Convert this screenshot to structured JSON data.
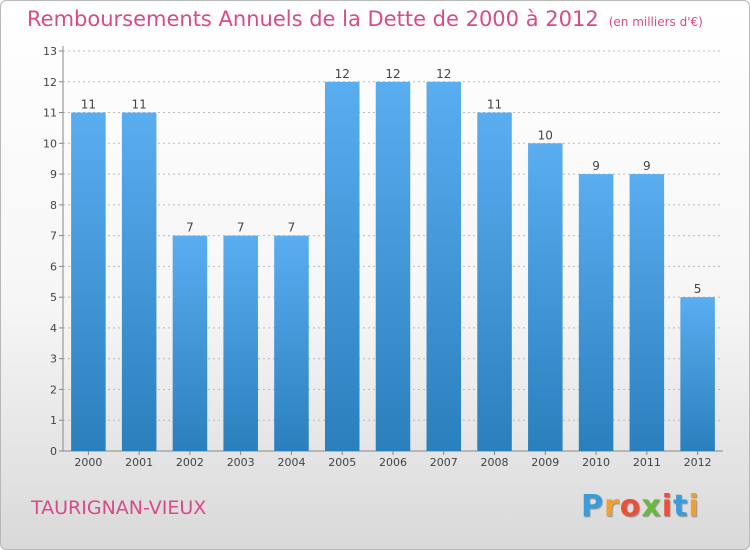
{
  "header": {
    "title": "Remboursements Annuels de la Dette de 2000 à 2012",
    "unit": "(en milliers d'€)"
  },
  "footer": {
    "commune": "TAURIGNAN-VIEUX",
    "logo": {
      "letters": [
        "P",
        "r",
        "o",
        "x",
        "i",
        "t",
        "i"
      ],
      "colors": [
        "#3b9cd9",
        "#f0a030",
        "#e8503a",
        "#6ab840",
        "#e8503a",
        "#3b9cd9",
        "#f0a030"
      ]
    }
  },
  "colors": {
    "bar_light": "#5aaef0",
    "bar_dark": "#2a7fbd",
    "title": "#d84a8a",
    "grid": "#bbbbbb"
  },
  "chart_data": {
    "type": "bar",
    "title": "Remboursements Annuels de la Dette de 2000 à 2012",
    "subtitle": "(en milliers d'€)",
    "categories": [
      "2000",
      "2001",
      "2002",
      "2003",
      "2004",
      "2005",
      "2006",
      "2007",
      "2008",
      "2009",
      "2010",
      "2011",
      "2012"
    ],
    "values": [
      11,
      11,
      7,
      7,
      7,
      12,
      12,
      12,
      11,
      10,
      9,
      9,
      5
    ],
    "ylim": [
      0,
      13
    ],
    "yticks": [
      0,
      1,
      2,
      3,
      4,
      5,
      6,
      7,
      8,
      9,
      10,
      11,
      12,
      13
    ],
    "grid": true,
    "legend": "none"
  }
}
